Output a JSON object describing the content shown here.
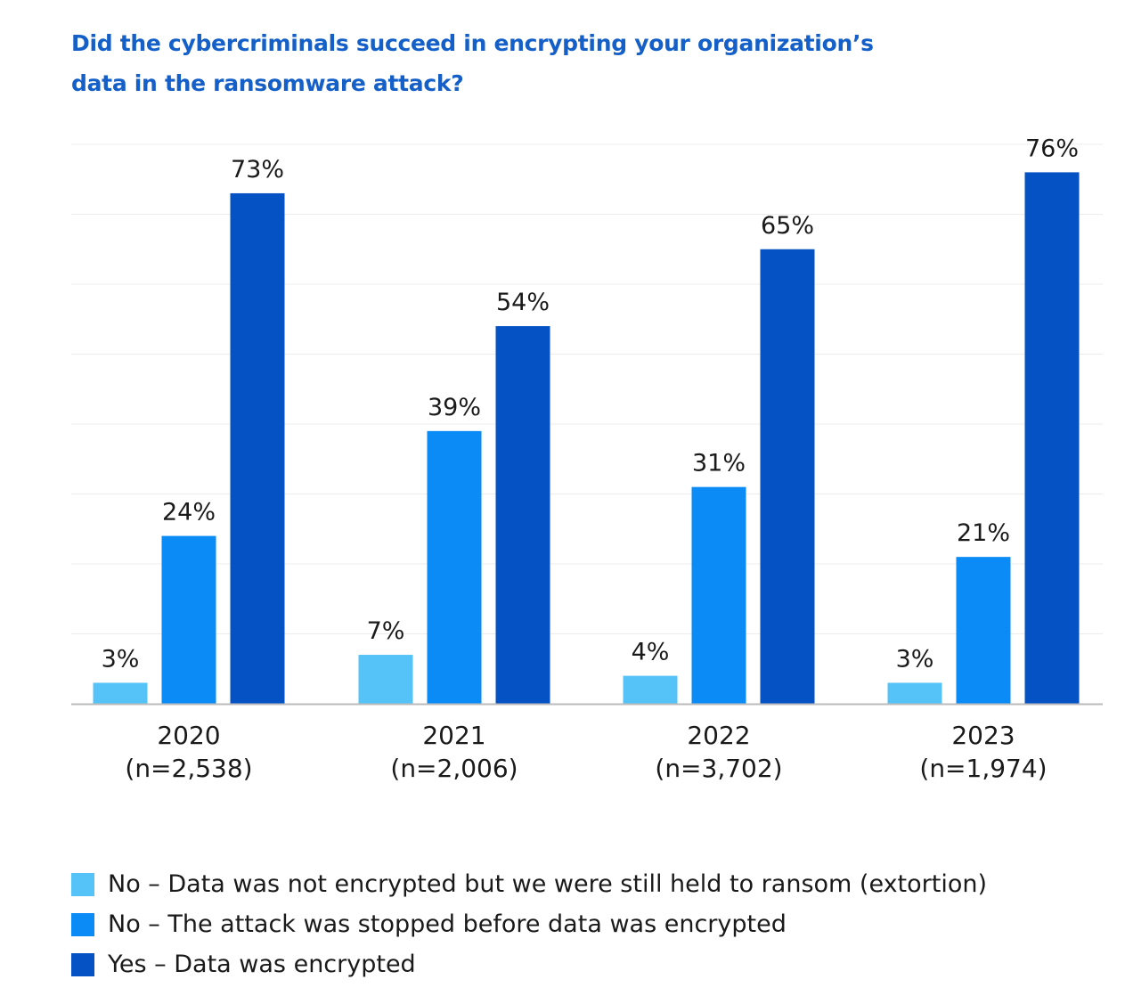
{
  "chart_data": {
    "type": "bar",
    "title": "Did the cybercriminals succeed in encrypting your organization’s data in the ransomware attack?",
    "title_lines": [
      "Did the cybercriminals succeed in encrypting your organization’s",
      "data in the ransomware attack?"
    ],
    "categories": [
      "2020",
      "2021",
      "2022",
      "2023"
    ],
    "category_sublabels": [
      "(n=2,538)",
      "(n=2,006)",
      "(n=3,702)",
      "(n=1,974)"
    ],
    "series": [
      {
        "name": "No – Data was not encrypted but we were still held to ransom (extortion)",
        "values": [
          3,
          7,
          4,
          3
        ],
        "labels": [
          "3%",
          "7%",
          "4%",
          "3%"
        ],
        "color": "#55c3f7"
      },
      {
        "name": "No – The attack was stopped before data was encrypted",
        "values": [
          24,
          39,
          31,
          21
        ],
        "labels": [
          "24%",
          "39%",
          "31%",
          "21%"
        ],
        "color": "#0a8bf5"
      },
      {
        "name": "Yes – Data was encrypted",
        "values": [
          73,
          54,
          65,
          76
        ],
        "labels": [
          "73%",
          "54%",
          "65%",
          "76%"
        ],
        "color": "#0452c4"
      }
    ],
    "ylim": [
      0,
      80
    ],
    "grid": true,
    "legend_position": "bottom-left",
    "xlabel": "",
    "ylabel": ""
  },
  "colors": {
    "title": "#1560c8",
    "axis": "#bbbbbb",
    "grid": "#ececec"
  }
}
